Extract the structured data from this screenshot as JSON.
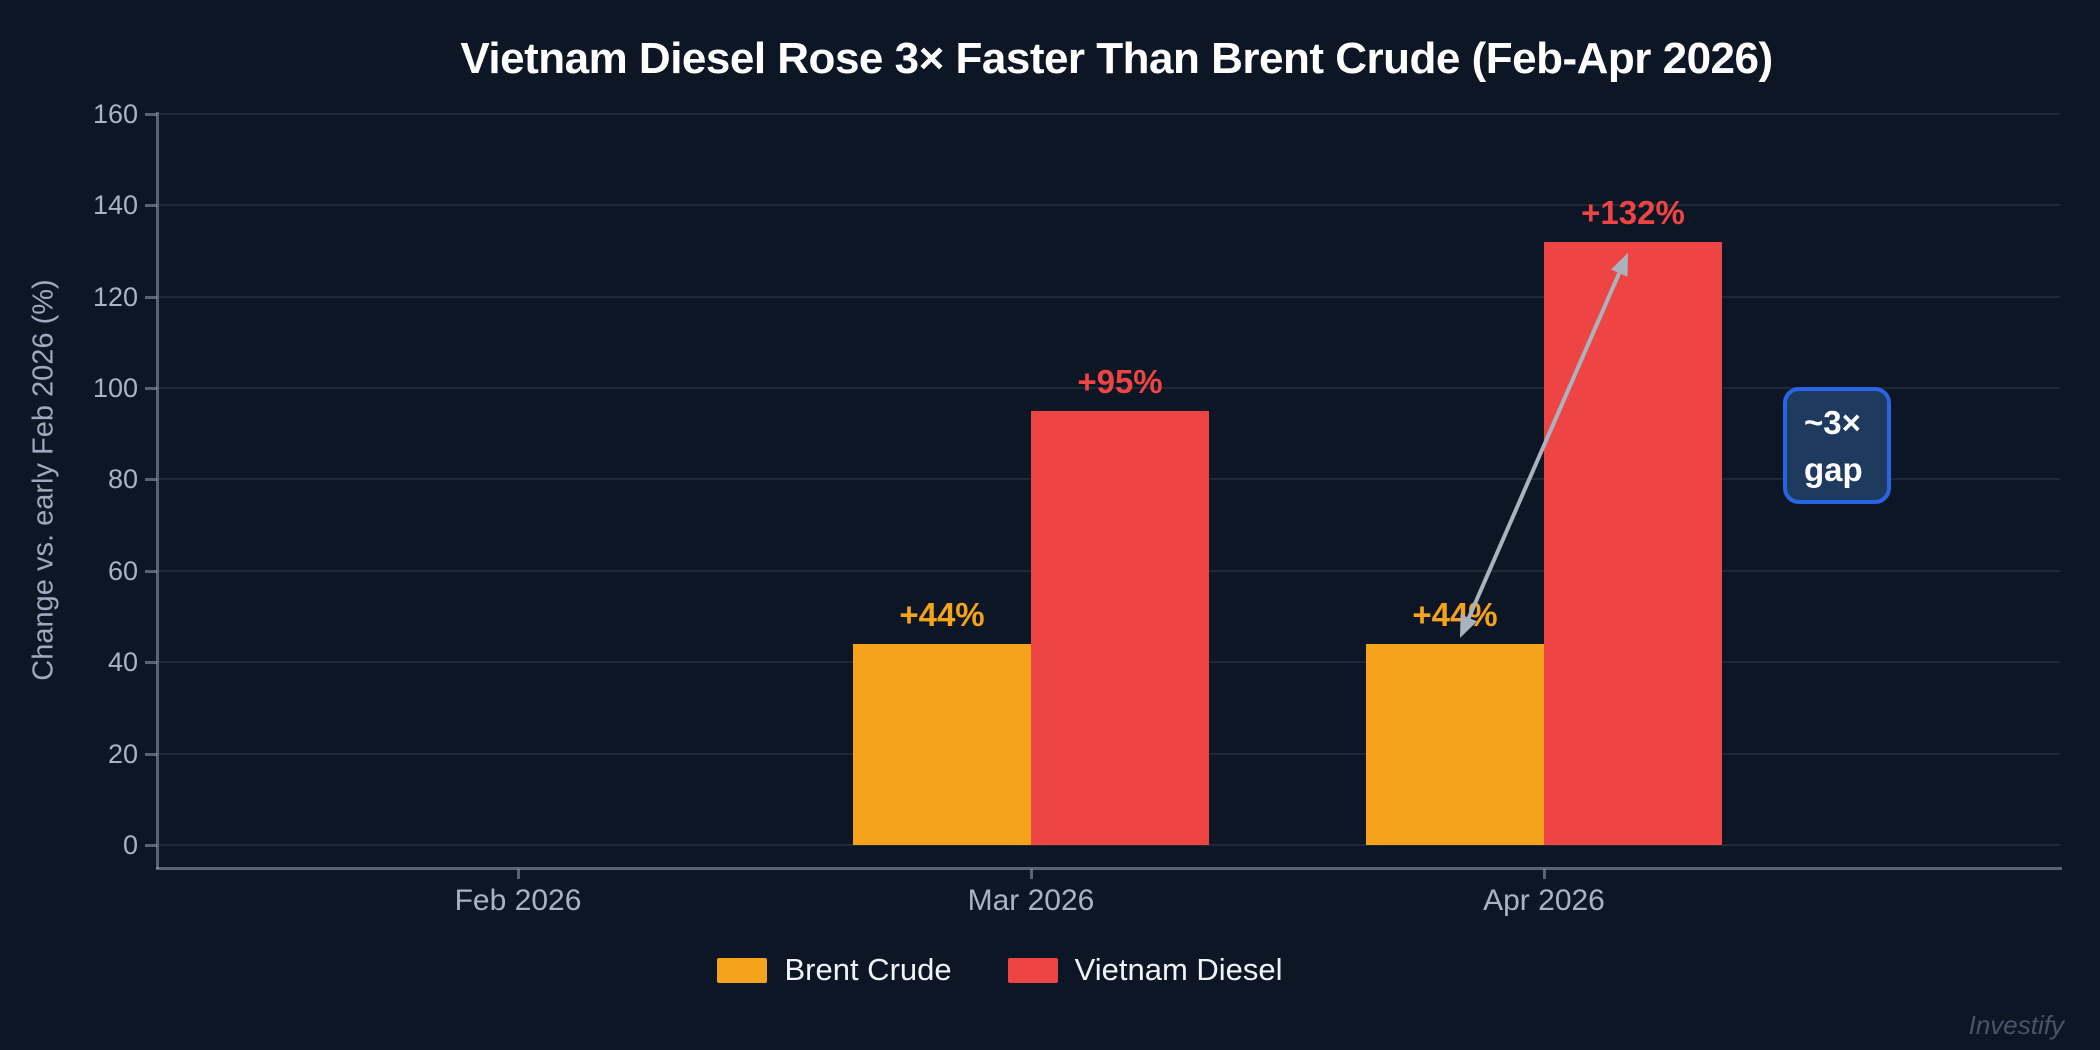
{
  "colors": {
    "background": "#0D1624",
    "brent_orange": "#F5A31B",
    "diesel_red": "#EF4444",
    "annotation_border_blue": "#2A64E6",
    "annotation_fill_blue": "#1E3A5E",
    "arrow_silver": "#A9B3BE",
    "axis_text": "#A7B4C8",
    "title_text": "#FFFFFF"
  },
  "chart_data": {
    "type": "bar",
    "title": "Vietnam Diesel Rose 3× Faster Than Brent Crude (Feb-Apr 2026)",
    "ylabel": "Change vs. early Feb 2026 (%)",
    "xlabel": "",
    "categories": [
      "Feb 2026",
      "Mar 2026",
      "Apr 2026"
    ],
    "series": [
      {
        "name": "Brent Crude",
        "color": "#F5A31B",
        "values": [
          0,
          44,
          44
        ],
        "bar_labels": [
          "",
          "+44%",
          "+44%"
        ]
      },
      {
        "name": "Vietnam Diesel",
        "color": "#EF4444",
        "values": [
          0,
          95,
          132
        ],
        "bar_labels": [
          "",
          "+95%",
          "+132%"
        ]
      }
    ],
    "ylim": [
      0,
      160
    ],
    "yticks": [
      0,
      20,
      40,
      60,
      80,
      100,
      120,
      140,
      160
    ],
    "grid": true,
    "legend_position": "bottom",
    "annotations": {
      "gap_box": {
        "line1": "~3×",
        "line2": "gap"
      },
      "arrow": {
        "category": "Apr 2026",
        "from_series": "Brent Crude",
        "from_value": 44,
        "to_series": "Vietnam Diesel",
        "to_value": 132
      }
    },
    "watermark": "Investify"
  }
}
